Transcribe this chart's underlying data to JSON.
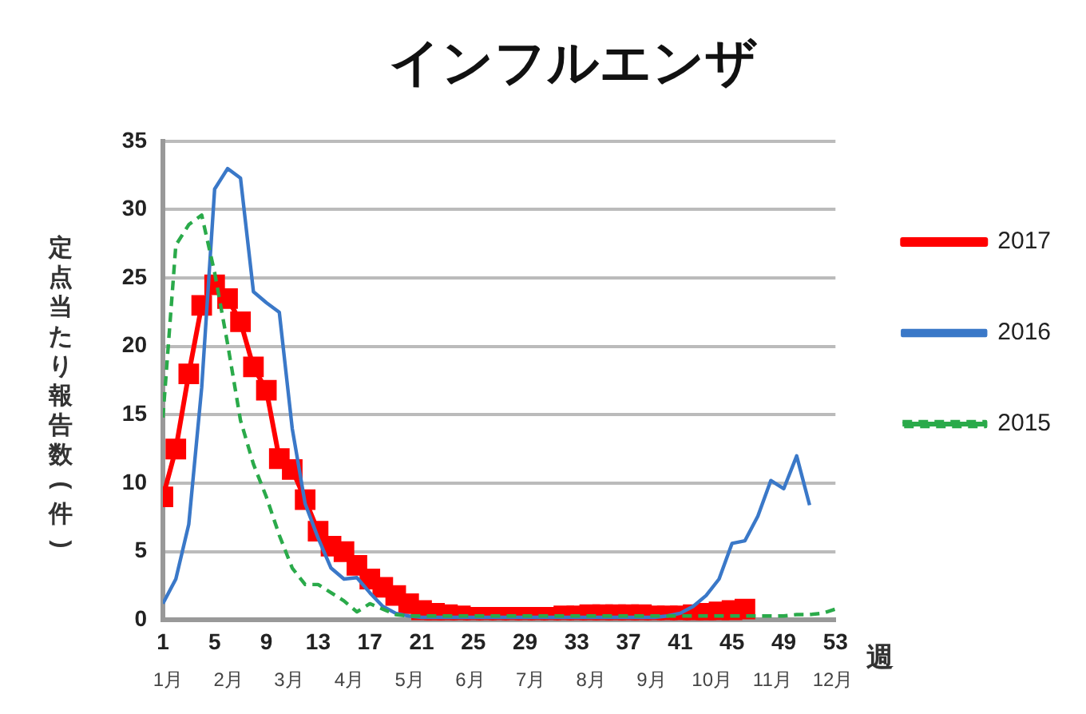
{
  "chart_data": {
    "type": "line",
    "title": "インフルエンザ",
    "xlabel": "週",
    "ylabel": "定点当たり報告数(件)",
    "x": [
      1,
      2,
      3,
      4,
      5,
      6,
      7,
      8,
      9,
      10,
      11,
      12,
      13,
      14,
      15,
      16,
      17,
      18,
      19,
      20,
      21,
      22,
      23,
      24,
      25,
      26,
      27,
      28,
      29,
      30,
      31,
      32,
      33,
      34,
      35,
      36,
      37,
      38,
      39,
      40,
      41,
      42,
      43,
      44,
      45,
      46,
      47,
      48,
      49,
      50,
      51,
      52,
      53
    ],
    "xlim": [
      1,
      53
    ],
    "xticks": [
      1,
      5,
      9,
      13,
      17,
      21,
      25,
      29,
      33,
      37,
      41,
      45,
      49,
      53
    ],
    "annotations": [
      "1月",
      "2月",
      "3月",
      "4月",
      "5月",
      "6月",
      "7月",
      "8月",
      "9月",
      "10月",
      "11月",
      "12月"
    ],
    "ylim": [
      0,
      35
    ],
    "yticks": [
      0,
      5,
      10,
      15,
      20,
      25,
      30,
      35
    ],
    "grid": "y",
    "legend": "right",
    "series": [
      {
        "name": "2017",
        "color": "#ff0000",
        "marker": "square",
        "line_style": "solid",
        "values": [
          9,
          12.5,
          18,
          23,
          24.5,
          23.5,
          21.8,
          18.5,
          16.8,
          11.8,
          11,
          8.8,
          6.5,
          5.4,
          5,
          4,
          3,
          2.4,
          1.8,
          1.2,
          0.7,
          0.5,
          0.4,
          0.3,
          0.2,
          0.2,
          0.2,
          0.2,
          0.2,
          0.2,
          0.2,
          0.3,
          0.3,
          0.4,
          0.4,
          0.4,
          0.4,
          0.4,
          0.3,
          0.3,
          0.3,
          0.4,
          0.5,
          0.6,
          0.7,
          0.8,
          null,
          null,
          null,
          null,
          null,
          null,
          null
        ]
      },
      {
        "name": "2016",
        "color": "#3a78c8",
        "marker": "none",
        "line_style": "solid",
        "values": [
          1.2,
          3,
          7,
          17,
          31.5,
          33,
          32.3,
          24,
          23.2,
          22.5,
          14,
          8.5,
          6,
          3.8,
          3,
          3.1,
          2,
          1,
          0.5,
          0.3,
          0.2,
          0.2,
          0.2,
          0.2,
          0.2,
          0.2,
          0.2,
          0.2,
          0.2,
          0.2,
          0.2,
          0.2,
          0.2,
          0.2,
          0.2,
          0.2,
          0.2,
          0.2,
          0.2,
          0.3,
          0.5,
          1,
          1.8,
          3,
          5.6,
          5.8,
          7.6,
          10.2,
          9.6,
          12,
          8.4,
          null,
          null
        ]
      },
      {
        "name": "2015",
        "color": "#2aaa4a",
        "marker": "none",
        "line_style": "dashed",
        "values": [
          14.8,
          27.4,
          28.9,
          29.6,
          25.4,
          20.2,
          14.6,
          11.4,
          9,
          6.2,
          3.8,
          2.6,
          2.6,
          2,
          1.4,
          0.6,
          1.2,
          0.8,
          0.4,
          0.3,
          0.3,
          0.3,
          0.3,
          0.3,
          0.3,
          0.3,
          0.3,
          0.3,
          0.3,
          0.3,
          0.3,
          0.3,
          0.3,
          0.3,
          0.3,
          0.3,
          0.3,
          0.3,
          0.3,
          0.3,
          0.3,
          0.3,
          0.3,
          0.3,
          0.3,
          0.3,
          0.3,
          0.3,
          0.3,
          0.4,
          0.4,
          0.5,
          0.8
        ]
      }
    ]
  }
}
